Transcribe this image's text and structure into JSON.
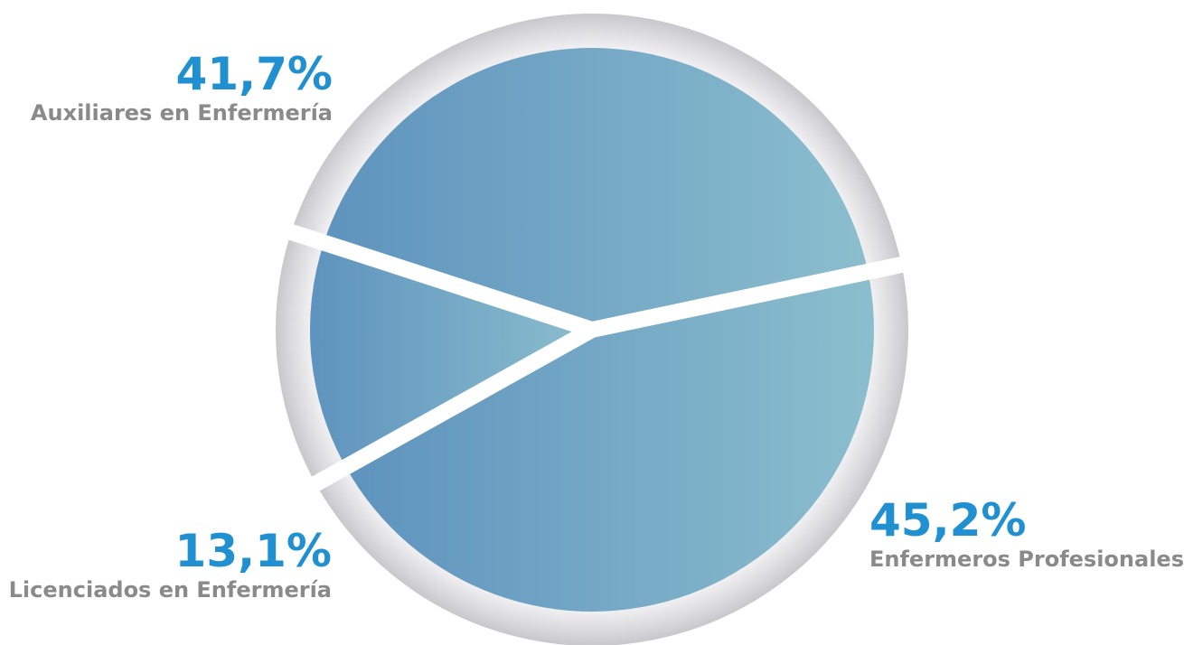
{
  "chart_data": {
    "type": "pie",
    "slices": [
      {
        "label": "Auxiliares en Enfermería",
        "value": 41.7,
        "value_label": "41,7%"
      },
      {
        "label": "Enfermeros Profesionales",
        "value": 45.2,
        "value_label": "45,2%"
      },
      {
        "label": "Licenciados en Enfermería",
        "value": 13.1,
        "value_label": "13,1%"
      }
    ],
    "colors": {
      "slice_gradient_start": "#5e93be",
      "slice_gradient_end": "#8bbecd",
      "ring": "#dcdce0",
      "separator": "#ffffff",
      "percent_text": "#2090d0",
      "label_text": "#8a8a8a"
    }
  }
}
